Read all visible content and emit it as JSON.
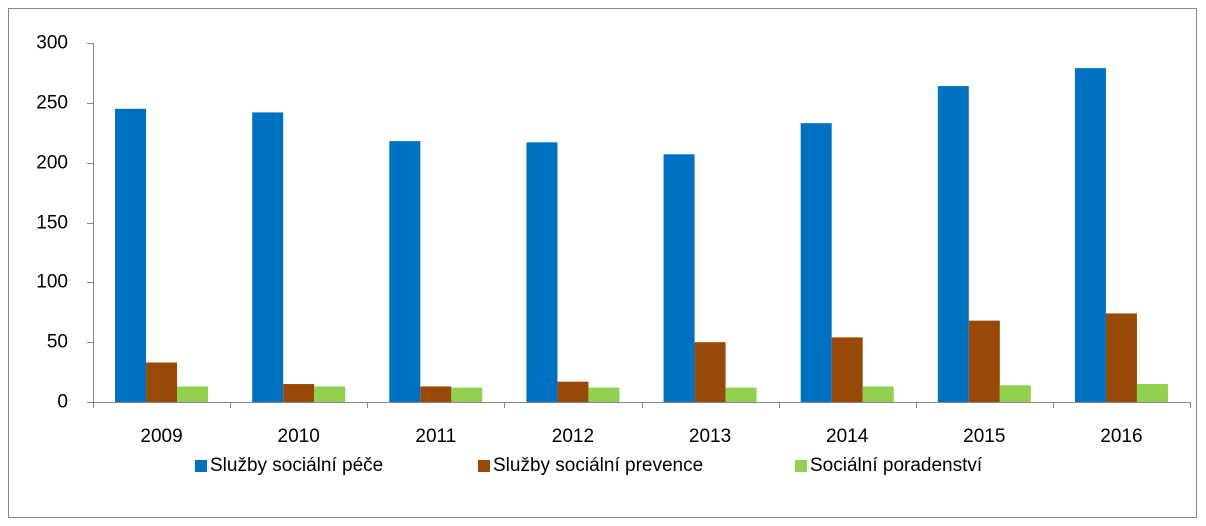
{
  "chart_data": {
    "type": "bar",
    "categories": [
      "2009",
      "2010",
      "2011",
      "2012",
      "2013",
      "2014",
      "2015",
      "2016"
    ],
    "series": [
      {
        "name": "Služby sociální péče",
        "color": "#0070c0",
        "values": [
          245,
          242,
          218,
          217,
          207,
          233,
          264,
          279
        ]
      },
      {
        "name": "Služby sociální prevence",
        "color": "#984807",
        "values": [
          33,
          15,
          13,
          17,
          50,
          54,
          68,
          74
        ]
      },
      {
        "name": "Sociální poradenství",
        "color": "#92d050",
        "values": [
          13,
          13,
          12,
          12,
          12,
          13,
          14,
          15
        ]
      }
    ],
    "ylim": [
      0,
      300
    ],
    "yticks": [
      0,
      50,
      100,
      150,
      200,
      250,
      300
    ],
    "grid": false,
    "legend": "bottom"
  }
}
